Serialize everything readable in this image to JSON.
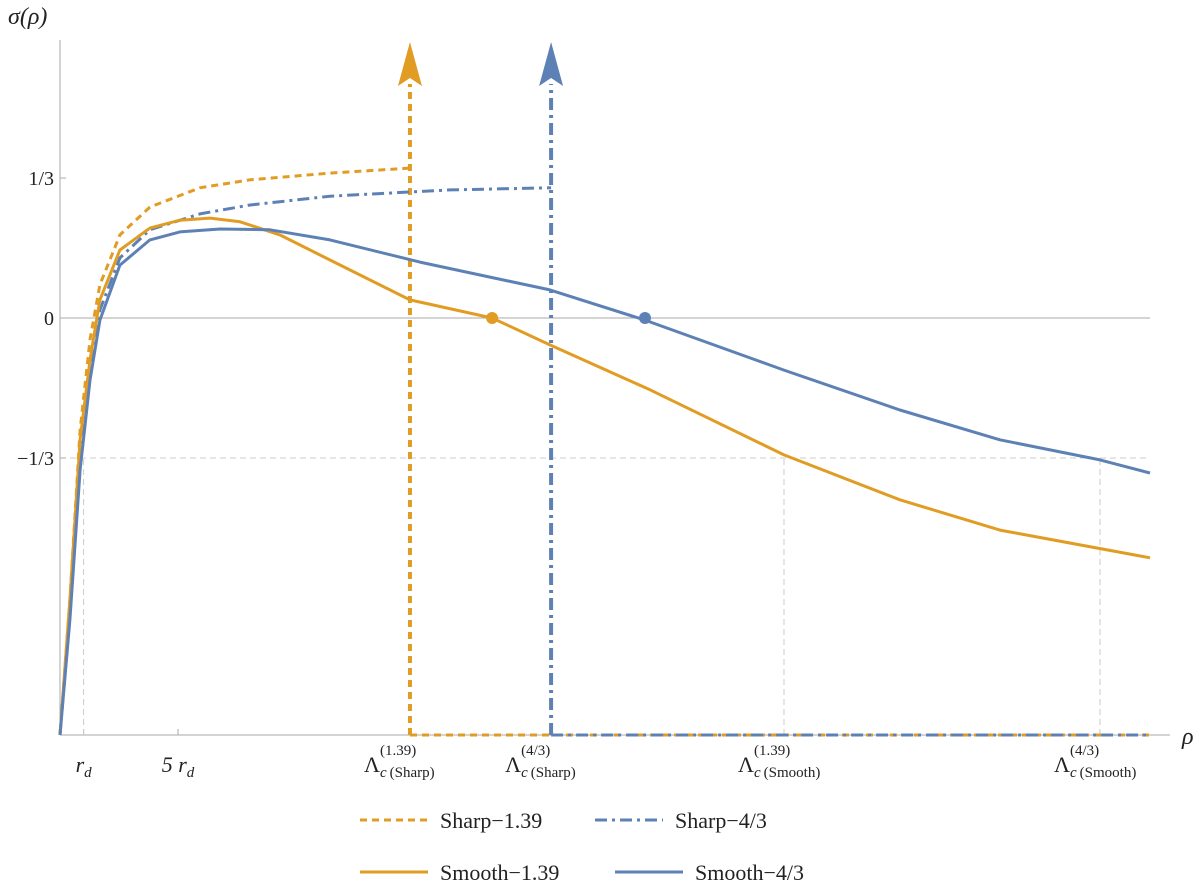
{
  "chart_data": {
    "type": "line",
    "y_label": "σ(ρ)",
    "x_label": "ρ",
    "xlim": [
      0,
      46.19
    ],
    "ylim": [
      -0.993,
      0.662
    ],
    "yticks": [
      {
        "value": 0.3333,
        "label": "1/3"
      },
      {
        "value": 0,
        "label": "0"
      },
      {
        "value": -0.3333,
        "label": "−1/3"
      }
    ],
    "xticks": [
      {
        "value": 1,
        "label": "r",
        "sub": "d",
        "drop": true
      },
      {
        "value": 5,
        "label": "5 r",
        "sub": "d",
        "drop": false
      },
      {
        "value": 14.83,
        "label": "Λ",
        "sup": "(1.39)",
        "sub": "c",
        "sub_note": "(Sharp)",
        "drop": false
      },
      {
        "value": 20.81,
        "label": "Λ",
        "sup": "(4/3)",
        "sub": "c",
        "sub_note": "(Sharp)",
        "drop": false
      },
      {
        "value": 30.68,
        "label": "Λ",
        "sup": "(1.39)",
        "sub": "c",
        "sub_note": "(Smooth)",
        "drop": true
      },
      {
        "value": 44.07,
        "label": "Λ",
        "sup": "(4/3)",
        "sub": "c",
        "sub_note": "(Smooth)",
        "drop": true
      }
    ],
    "zero_line": true,
    "reference_line": -0.3333,
    "series": [
      {
        "name": "Sharp−1.39",
        "color": "#E19C24",
        "style": "dashed",
        "asymptote": 14.83,
        "x": [
          0,
          0.42,
          0.85,
          1.27,
          1.69,
          2.54,
          3.81,
          5.93,
          8.05,
          11.44,
          14.83,
          null,
          14.83,
          46.19
        ],
        "values": [
          -0.993,
          -0.671,
          -0.267,
          -0.052,
          0.079,
          0.198,
          0.264,
          0.31,
          0.329,
          0.345,
          0.357,
          null,
          -0.993,
          -0.993
        ]
      },
      {
        "name": "Sharp−4/3",
        "color": "#5E81B5",
        "style": "dashdot",
        "asymptote": 20.81,
        "x": [
          0,
          0.42,
          0.85,
          1.27,
          1.69,
          2.54,
          3.81,
          5.93,
          8.05,
          11.44,
          16.53,
          20.81,
          null,
          20.81,
          46.19
        ],
        "values": [
          -0.993,
          -0.707,
          -0.338,
          -0.124,
          0.019,
          0.143,
          0.21,
          0.248,
          0.269,
          0.29,
          0.305,
          0.31,
          null,
          -0.993,
          -0.993
        ]
      },
      {
        "name": "Smooth−1.39",
        "color": "#E19C24",
        "style": "solid",
        "marker": {
          "x": 18.31,
          "y": 0
        },
        "x": [
          0,
          0.42,
          0.85,
          1.27,
          1.69,
          2.54,
          3.81,
          5.08,
          6.36,
          7.63,
          9.32,
          11.44,
          14.83,
          18.31,
          20.76,
          25.0,
          30.68,
          35.59,
          39.83,
          46.19
        ],
        "values": [
          -0.993,
          -0.671,
          -0.29,
          -0.1,
          0.043,
          0.162,
          0.214,
          0.233,
          0.238,
          0.229,
          0.198,
          0.138,
          0.043,
          0,
          -0.064,
          -0.171,
          -0.326,
          -0.433,
          -0.505,
          -0.571
        ]
      },
      {
        "name": "Smooth−4/3",
        "color": "#5E81B5",
        "style": "solid",
        "marker": {
          "x": 24.79,
          "y": 0
        },
        "x": [
          0,
          0.42,
          0.85,
          1.27,
          1.69,
          2.54,
          3.81,
          5.08,
          6.78,
          8.9,
          11.44,
          15.25,
          20.76,
          24.79,
          30.68,
          35.59,
          39.83,
          44.07,
          46.19
        ],
        "values": [
          -0.993,
          -0.719,
          -0.362,
          -0.148,
          -0.005,
          0.126,
          0.186,
          0.205,
          0.212,
          0.21,
          0.186,
          0.133,
          0.067,
          -0.005,
          -0.124,
          -0.219,
          -0.29,
          -0.338,
          -0.369
        ]
      }
    ]
  }
}
